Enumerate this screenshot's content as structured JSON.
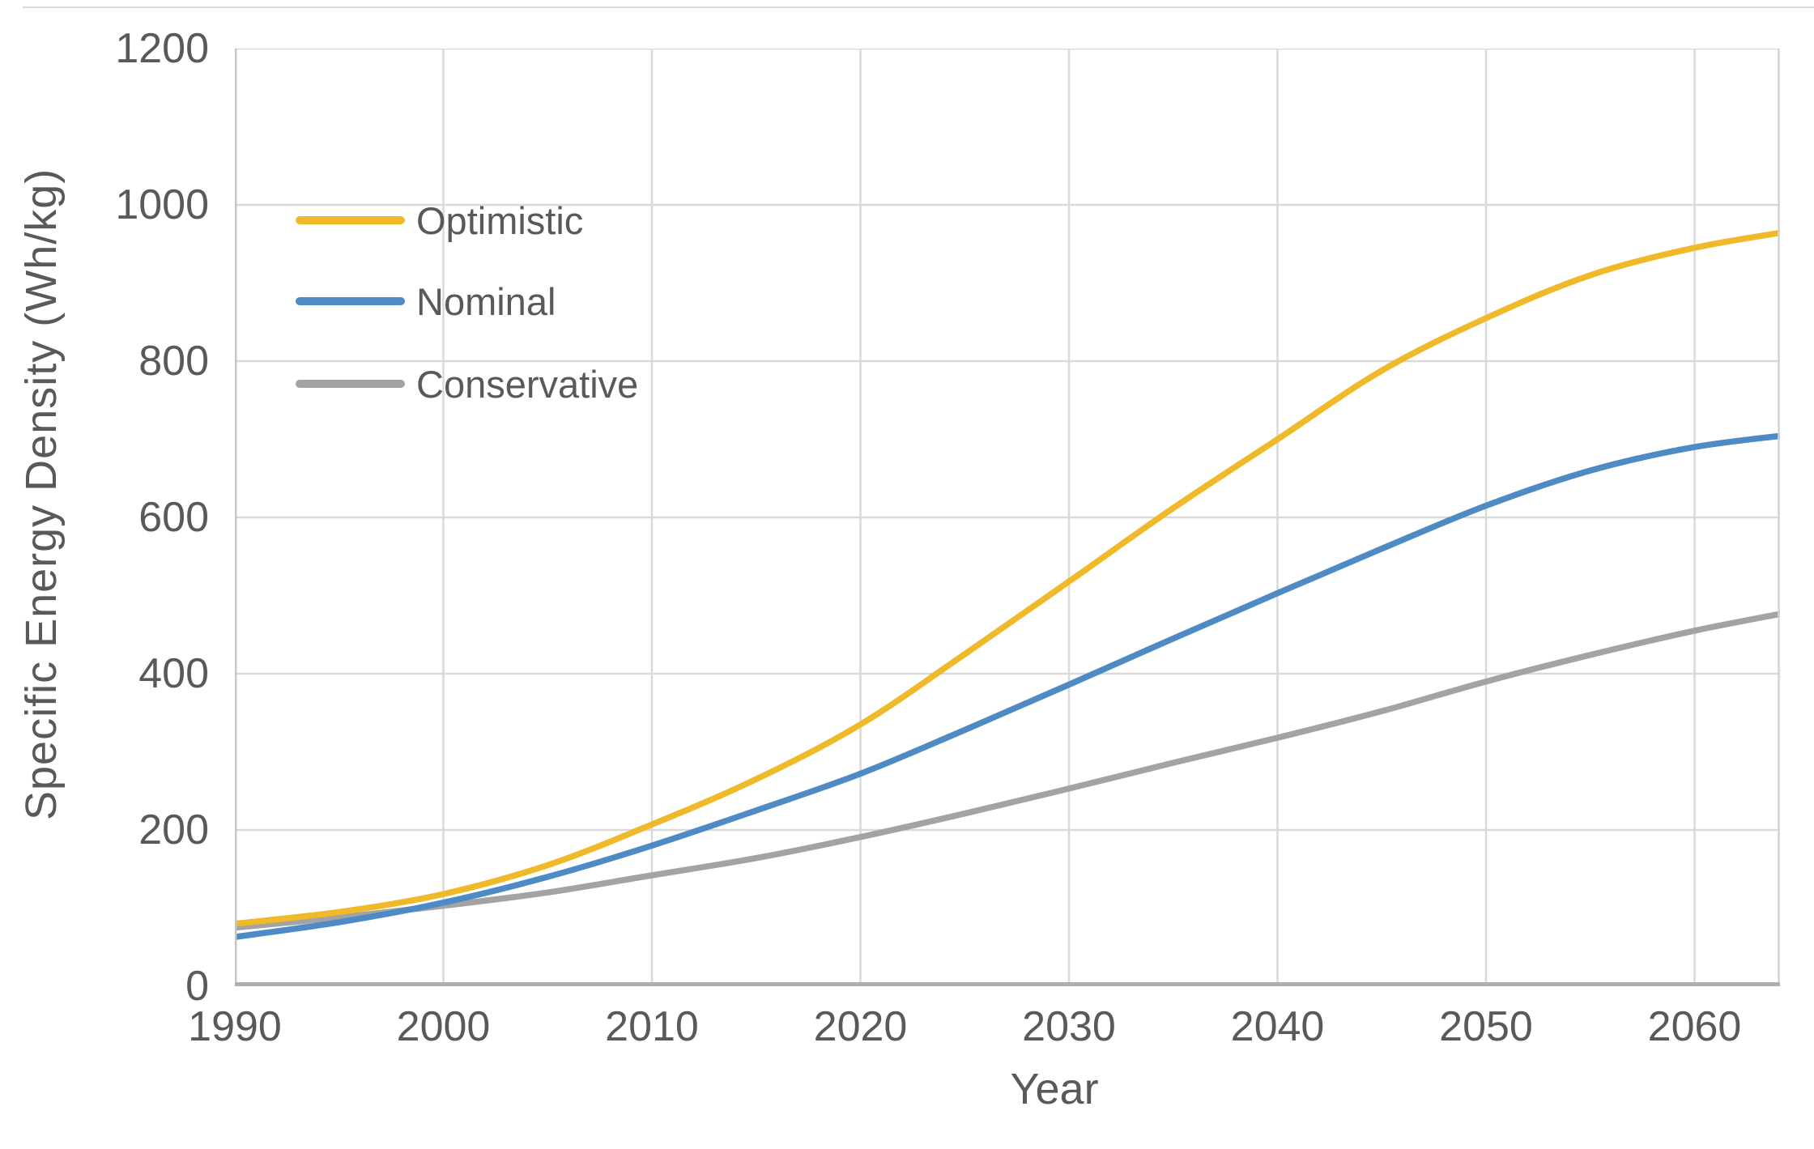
{
  "chart_data": {
    "type": "line",
    "title": "",
    "xlabel": "Year",
    "ylabel": "Specific Energy Density (Wh/kg)",
    "x_tick_labels": [
      "1990",
      "2000",
      "2010",
      "2020",
      "2030",
      "2040",
      "2050",
      "2060"
    ],
    "y_tick_labels": [
      "0",
      "200",
      "400",
      "600",
      "800",
      "1000",
      "1200"
    ],
    "xlim": [
      1990,
      2064.2
    ],
    "ylim": [
      0,
      1200
    ],
    "grid": true,
    "legend_position": "inside-top-left",
    "x": [
      1990,
      1995,
      2000,
      2005,
      2010,
      2015,
      2020,
      2025,
      2030,
      2035,
      2040,
      2045,
      2050,
      2055,
      2060,
      2065
    ],
    "series": [
      {
        "name": "Optimistic",
        "color": "#EFB929",
        "values": [
          80,
          95,
          118,
          155,
          207,
          265,
          335,
          425,
          518,
          612,
          700,
          788,
          855,
          910,
          945,
          968
        ]
      },
      {
        "name": "Nominal",
        "color": "#4E8AC4",
        "values": [
          63,
          82,
          107,
          140,
          180,
          225,
          272,
          328,
          386,
          445,
          503,
          560,
          615,
          660,
          690,
          707
        ]
      },
      {
        "name": "Conservative",
        "color": "#A3A3A3",
        "values": [
          75,
          88,
          103,
          120,
          142,
          164,
          191,
          221,
          253,
          286,
          318,
          352,
          390,
          424,
          455,
          481
        ]
      }
    ]
  },
  "style_colors": {
    "gridline": "#d9d9d9",
    "plot_border": "#d4d4d4",
    "y_axis_line": "#c6c6c6",
    "x_axis_line": "#aeaeae",
    "text": "#595959"
  }
}
